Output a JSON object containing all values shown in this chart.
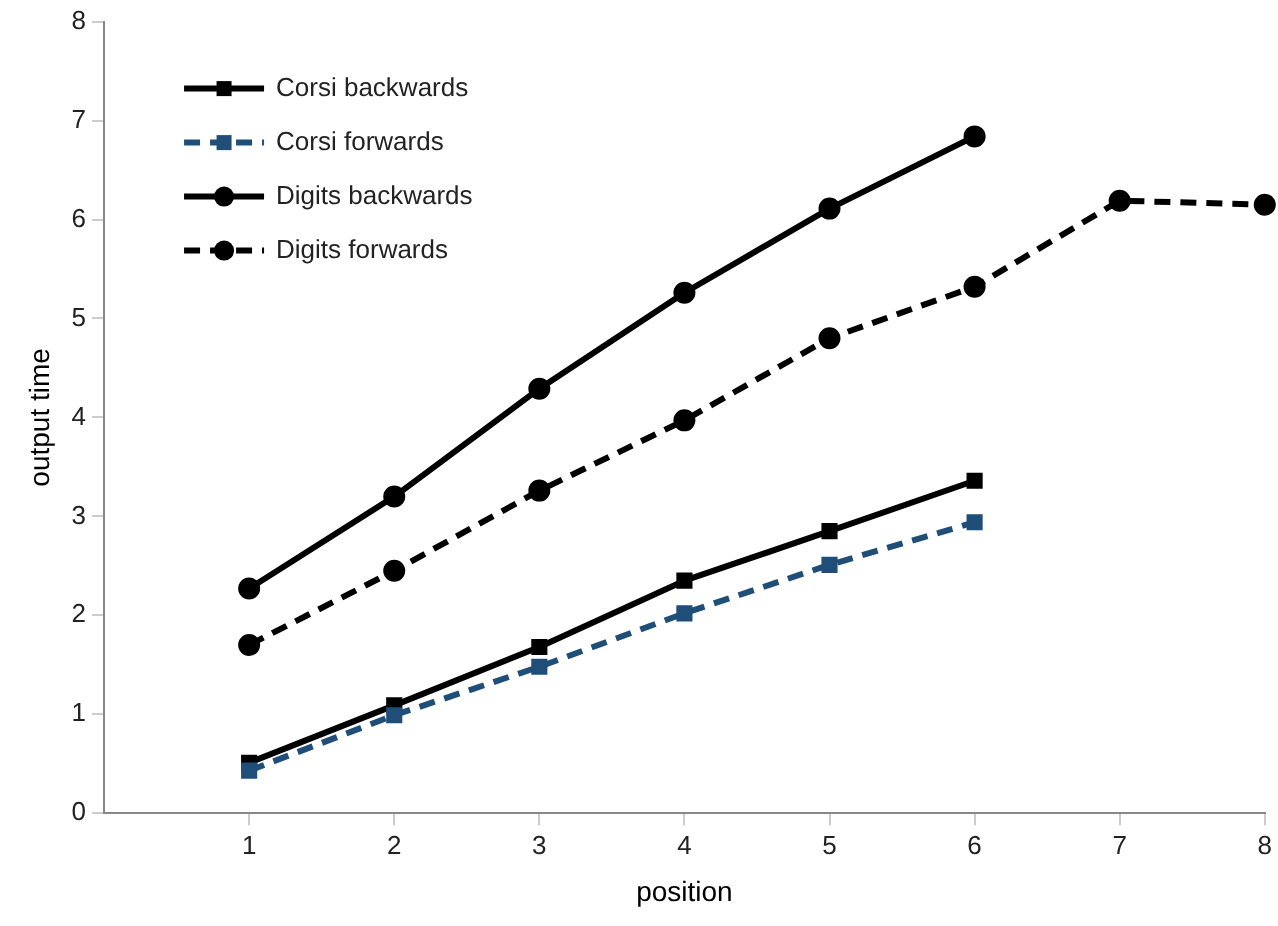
{
  "chart_data": {
    "type": "line",
    "xlabel": "position",
    "ylabel": "output time",
    "xlim": [
      0,
      8
    ],
    "xticks": [
      1,
      2,
      3,
      4,
      5,
      6,
      7,
      8
    ],
    "ylim": [
      0,
      8
    ],
    "yticks": [
      0,
      1,
      2,
      3,
      4,
      5,
      6,
      7,
      8
    ],
    "grid": false,
    "legend": "top left",
    "series": [
      {
        "name": "Corsi backwards",
        "color": "#000000",
        "marker": "square",
        "line_style": "solid",
        "x": [
          1,
          2,
          3,
          4,
          5,
          6
        ],
        "values": [
          0.51,
          1.09,
          1.68,
          2.35,
          2.85,
          3.36
        ]
      },
      {
        "name": "Corsi forwards",
        "color": "#1f4e79",
        "marker": "square",
        "line_style": "dashed",
        "x": [
          1,
          2,
          3,
          4,
          5,
          6
        ],
        "values": [
          0.43,
          0.99,
          1.48,
          2.02,
          2.51,
          2.94
        ]
      },
      {
        "name": "Digits backwards",
        "color": "#000000",
        "marker": "circle",
        "line_style": "solid",
        "x": [
          1,
          2,
          3,
          4,
          5,
          6
        ],
        "values": [
          2.27,
          3.2,
          4.29,
          5.26,
          6.11,
          6.84
        ]
      },
      {
        "name": "Digits forwards",
        "color": "#000000",
        "marker": "circle",
        "line_style": "dashed",
        "x": [
          1,
          2,
          3,
          4,
          5,
          6,
          7,
          8
        ],
        "values": [
          1.7,
          2.45,
          3.26,
          3.97,
          4.8,
          5.32,
          6.19,
          6.15
        ]
      }
    ]
  }
}
